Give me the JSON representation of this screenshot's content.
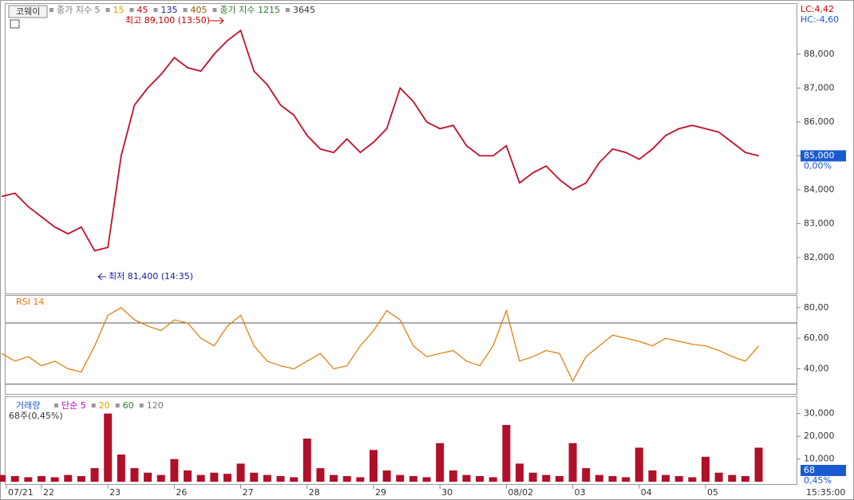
{
  "chart_data": [
    {
      "type": "line",
      "title": "코웨이",
      "legend": [
        {
          "label": "종가 지수 5",
          "color": "#777777"
        },
        {
          "label": "15",
          "color": "#e0a000"
        },
        {
          "label": "45",
          "color": "#c00000"
        },
        {
          "label": "135",
          "color": "#1a1a9a"
        },
        {
          "label": "405",
          "color": "#8a5a00"
        },
        {
          "label": "종가 지수 1215",
          "color": "#2a7a2a"
        },
        {
          "label": "3645",
          "color": "#333333"
        }
      ],
      "categories": [
        "07/21",
        null,
        null,
        "22",
        null,
        null,
        null,
        null,
        "23",
        null,
        null,
        null,
        null,
        "26",
        null,
        null,
        null,
        null,
        "27",
        null,
        null,
        null,
        null,
        "28",
        null,
        null,
        null,
        null,
        "29",
        null,
        null,
        null,
        null,
        "30",
        null,
        null,
        null,
        null,
        "08/02",
        null,
        null,
        null,
        null,
        "03",
        null,
        null,
        null,
        null,
        "04",
        null,
        null,
        null,
        null,
        "05",
        null,
        null,
        null,
        null
      ],
      "values": [
        83800,
        83900,
        83500,
        83200,
        82900,
        82700,
        82900,
        82200,
        82300,
        85000,
        86500,
        87000,
        87400,
        87900,
        87600,
        87500,
        88000,
        88400,
        88700,
        87500,
        87100,
        86500,
        86200,
        85600,
        85200,
        85100,
        85500,
        85100,
        85400,
        85800,
        87000,
        86600,
        86000,
        85800,
        85900,
        85300,
        85000,
        85000,
        85300,
        84200,
        84500,
        84700,
        84300,
        84000,
        84200,
        84800,
        85200,
        85100,
        84900,
        85200,
        85600,
        85800,
        85900,
        85800,
        85700,
        85400,
        85100,
        85000
      ],
      "color": "#c0102a",
      "ylim": [
        80940,
        89480
      ],
      "yticks": [
        {
          "value": 82000,
          "label": "82,000"
        },
        {
          "value": 83000,
          "label": "83,000"
        },
        {
          "value": 84000,
          "label": "84,000"
        },
        {
          "value": 85000,
          "label": "85,000"
        },
        {
          "value": 86000,
          "label": "86,000"
        },
        {
          "value": 87000,
          "label": "87,000"
        },
        {
          "value": 88000,
          "label": "88,000"
        }
      ],
      "annotations": [
        "최고 89,100 (13:50)",
        "최저 81,400 (14:35)"
      ],
      "current": {
        "value": 85000,
        "label": "85,000"
      },
      "current_change": "0,00%",
      "lc_label": "LC:4,42",
      "hc_label": "HC:-4,60"
    },
    {
      "type": "line",
      "title": "RSI 14",
      "values": [
        50,
        45,
        48,
        42,
        45,
        40,
        38,
        55,
        75,
        80,
        72,
        68,
        65,
        72,
        70,
        60,
        55,
        68,
        75,
        55,
        45,
        42,
        40,
        45,
        50,
        40,
        42,
        55,
        65,
        78,
        72,
        55,
        48,
        50,
        52,
        45,
        42,
        55,
        78,
        45,
        48,
        52,
        50,
        32,
        48,
        55,
        62,
        60,
        58,
        55,
        60,
        58,
        56,
        55,
        52,
        48,
        45,
        55
      ],
      "color": "#e07800",
      "ylim": [
        23.6,
        87.7
      ],
      "yticks": [
        {
          "value": 40,
          "label": "40,00"
        },
        {
          "value": 60,
          "label": "60,00"
        },
        {
          "value": 80,
          "label": "80,00"
        }
      ],
      "hlines": [
        70,
        30
      ]
    },
    {
      "type": "bar",
      "title": "거래량",
      "legend": [
        {
          "label": "단순 5",
          "color": "#c000c0"
        },
        {
          "label": "20",
          "color": "#e0a000"
        },
        {
          "label": "60",
          "color": "#2a7a2a"
        },
        {
          "label": "120",
          "color": "#777777"
        }
      ],
      "subtitle": "68주(0,45%)",
      "values": [
        3000,
        2500,
        2000,
        2500,
        2000,
        3000,
        2500,
        6000,
        30000,
        12000,
        6000,
        4000,
        3000,
        10000,
        5000,
        3000,
        4000,
        3500,
        8000,
        4000,
        3000,
        2500,
        2000,
        19000,
        6000,
        3000,
        2500,
        2000,
        14000,
        5000,
        3000,
        2500,
        2000,
        17000,
        5000,
        3000,
        2500,
        2000,
        25000,
        8000,
        4000,
        3000,
        2500,
        17000,
        6000,
        3000,
        2500,
        2000,
        15000,
        5000,
        3000,
        2500,
        2000,
        11000,
        4000,
        3000,
        2500,
        15000
      ],
      "color": "#b0102a",
      "ylim": [
        -1000,
        37240
      ],
      "yticks": [
        {
          "value": 10000,
          "label": "10,000"
        },
        {
          "value": 20000,
          "label": "20,000"
        },
        {
          "value": 30000,
          "label": "30,000"
        }
      ],
      "current": 68,
      "current_change": "0,45%",
      "x_end_label": "15:35:00"
    }
  ]
}
